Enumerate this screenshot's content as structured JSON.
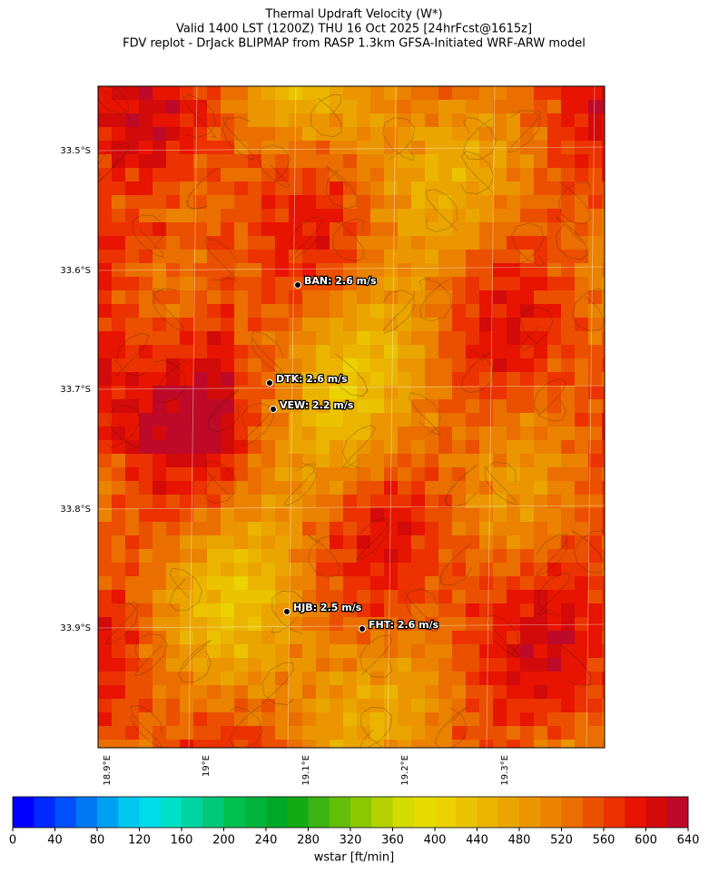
{
  "header": {
    "title": "Thermal Updraft Velocity (W*)",
    "subtitle": "Valid 1400 LST (1200Z) THU 16 Oct 2025 [24hrFcst@1615z]",
    "source": "FDV replot - DrJack BLIPMAP from RASP 1.3km GFSA-Initiated WRF-ARW model"
  },
  "map": {
    "lat_labels": [
      "33.5°S",
      "33.6°S",
      "33.7°S",
      "33.8°S",
      "33.9°S"
    ],
    "lon_labels": [
      "18.9°E",
      "19°E",
      "19.1°E",
      "19.2°E",
      "19.3°E"
    ],
    "stations": [
      {
        "label": "BAN: 2.6 m/s"
      },
      {
        "label": "DTK: 2.6 m/s"
      },
      {
        "label": "VEW: 2.2 m/s"
      },
      {
        "label": "HJB: 2.5 m/s"
      },
      {
        "label": "FHT: 2.6 m/s"
      }
    ]
  },
  "colorbar": {
    "label": "wstar [ft/min]",
    "lim": [
      0,
      640
    ],
    "ticks": [
      0,
      40,
      80,
      120,
      160,
      200,
      240,
      280,
      320,
      360,
      400,
      440,
      480,
      520,
      560,
      600,
      640
    ],
    "colors": [
      "#0000ff",
      "#0028ff",
      "#0050ff",
      "#0078f5",
      "#00a0f0",
      "#00c8f0",
      "#00dce8",
      "#00e0c8",
      "#00d4a0",
      "#00c878",
      "#00c050",
      "#00b43c",
      "#00aa28",
      "#14aa14",
      "#3cb414",
      "#64be0a",
      "#8cc800",
      "#b4d200",
      "#d2dc00",
      "#e6dc00",
      "#ebd200",
      "#ebc300",
      "#ebb400",
      "#eba500",
      "#eb9600",
      "#eb8200",
      "#eb6e00",
      "#eb5000",
      "#eb3200",
      "#e61400",
      "#d20a0a",
      "#be0a28"
    ]
  }
}
